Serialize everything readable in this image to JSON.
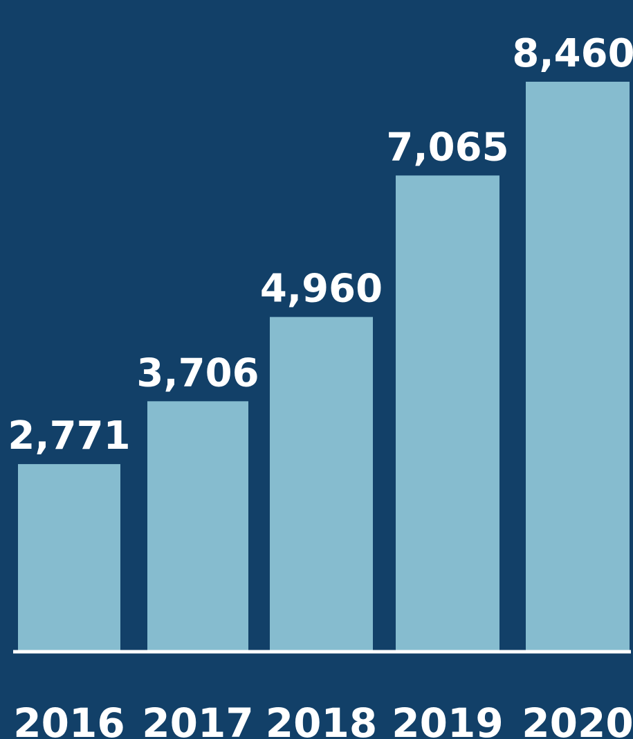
{
  "chart_data": {
    "type": "bar",
    "categories": [
      "2016",
      "2017",
      "2018",
      "2019",
      "2020"
    ],
    "values": [
      2771,
      3706,
      4960,
      7065,
      8460
    ],
    "value_labels": [
      "2,771",
      "3,706",
      "4,960",
      "7,065",
      "8,460"
    ],
    "color": "#86bccf"
  }
}
